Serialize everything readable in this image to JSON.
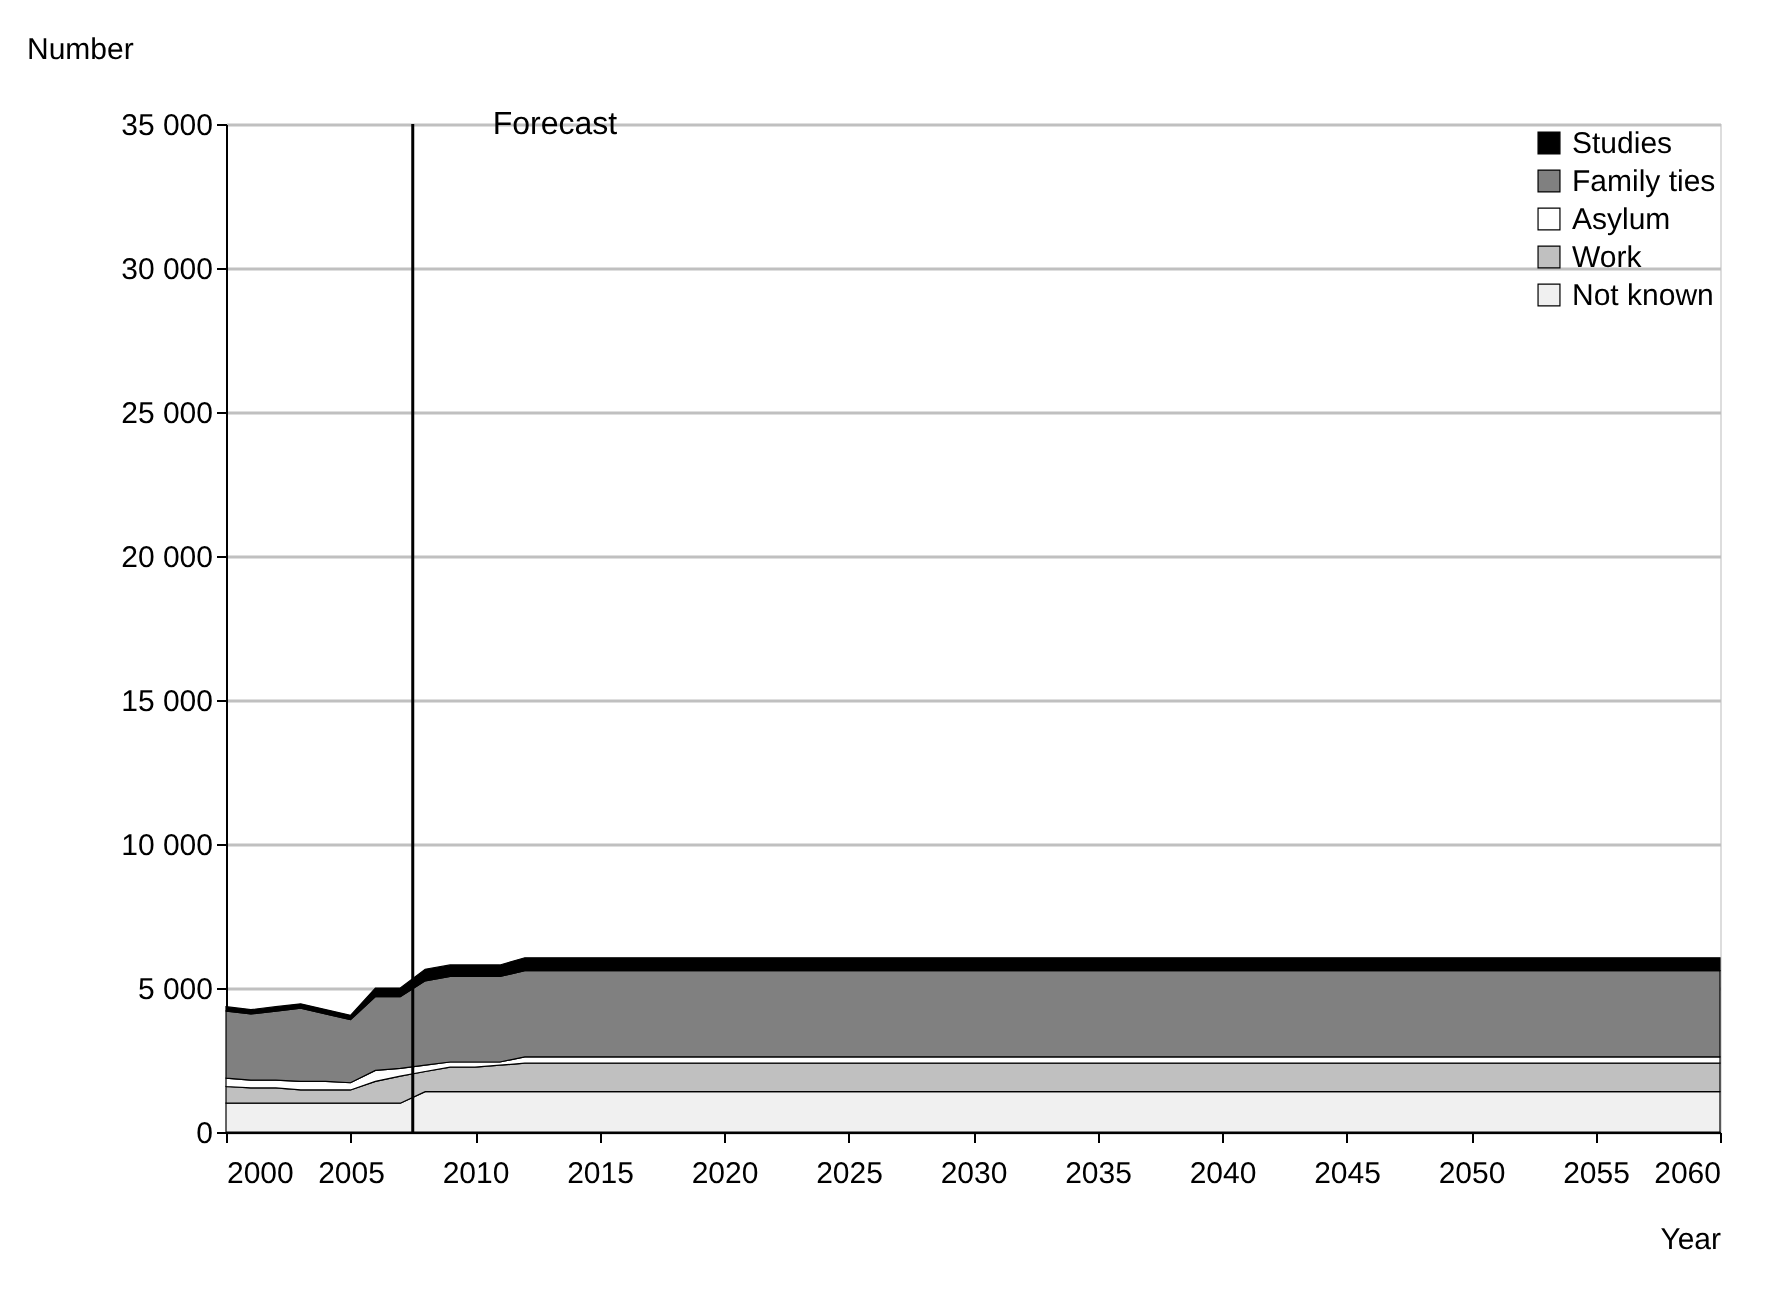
{
  "chart_data": {
    "type": "area",
    "stacked": true,
    "xlabel": "Year",
    "ylabel": "Number",
    "x": [
      2000,
      2001,
      2002,
      2003,
      2004,
      2005,
      2006,
      2007,
      2008,
      2009,
      2010,
      2011,
      2012,
      2060
    ],
    "series": [
      {
        "name": "Not known",
        "color": "#f0f0f0",
        "values": [
          1000,
          1000,
          1000,
          1000,
          1000,
          1000,
          1000,
          1000,
          1400,
          1400,
          1400,
          1400,
          1400,
          1400
        ]
      },
      {
        "name": "Work",
        "color": "#c0c0c0",
        "values": [
          580,
          530,
          530,
          460,
          460,
          460,
          760,
          940,
          700,
          850,
          850,
          920,
          990,
          990
        ]
      },
      {
        "name": "Asylum",
        "color": "#ffffff",
        "values": [
          290,
          270,
          270,
          300,
          300,
          250,
          380,
          270,
          220,
          180,
          180,
          110,
          220,
          220
        ]
      },
      {
        "name": "Family ties",
        "color": "#808080",
        "values": [
          2330,
          2300,
          2400,
          2540,
          2340,
          2190,
          2560,
          2490,
          2930,
          2970,
          2970,
          2970,
          2990,
          2990
        ]
      },
      {
        "name": "Studies",
        "color": "#000000",
        "values": [
          150,
          150,
          150,
          150,
          150,
          150,
          300,
          300,
          400,
          400,
          400,
          400,
          450,
          450
        ]
      }
    ],
    "xlim": [
      2000,
      2060
    ],
    "xticks": [
      2000,
      2005,
      2010,
      2015,
      2020,
      2025,
      2030,
      2035,
      2040,
      2045,
      2050,
      2055,
      2060
    ],
    "ylim": [
      0,
      35000
    ],
    "yticks": [
      0,
      {
        "value": 5000,
        "label": "5 000"
      },
      {
        "value": 10000,
        "label": "10 000"
      },
      {
        "value": 15000,
        "label": "15 000"
      },
      {
        "value": 20000,
        "label": "20 000"
      },
      {
        "value": 25000,
        "label": "25 000"
      },
      {
        "value": 30000,
        "label": "30 000"
      },
      {
        "value": 35000,
        "label": "35 000"
      }
    ],
    "grid": "y",
    "legend": "top right",
    "ref_lines": [
      {
        "axis": "x",
        "value": 2007.5,
        "label": "Forecast",
        "color": "#000000"
      }
    ]
  }
}
